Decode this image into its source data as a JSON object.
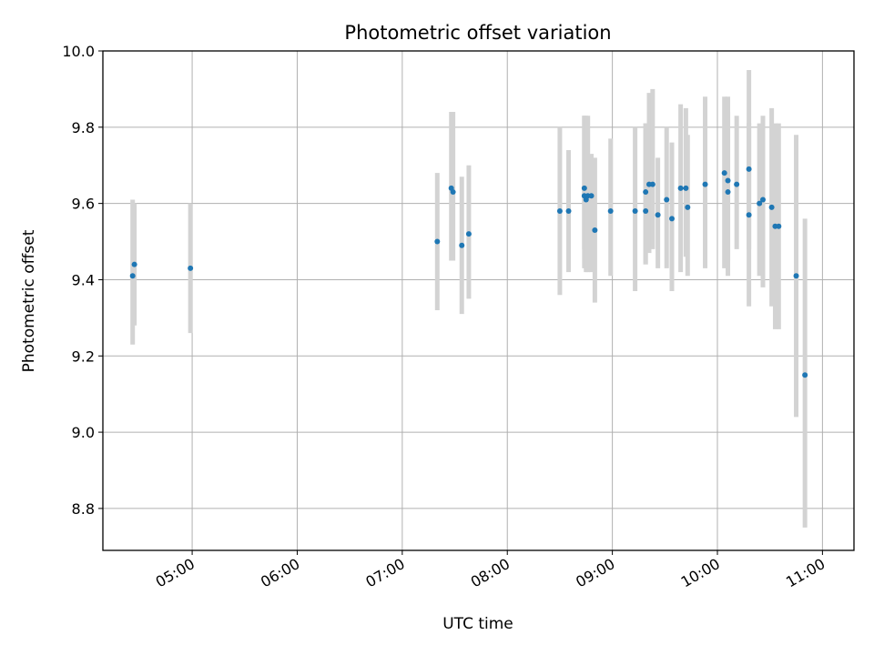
{
  "chart_data": {
    "type": "scatter",
    "title": "Photometric offset variation",
    "xlabel": "UTC time",
    "ylabel": "Photometric offset",
    "x_axis_kind": "time",
    "xlim": [
      "04:09",
      "11:18"
    ],
    "ylim": [
      8.69,
      10.0
    ],
    "xticks": [
      "05:00",
      "06:00",
      "07:00",
      "08:00",
      "09:00",
      "10:00",
      "11:00"
    ],
    "yticks": [
      8.8,
      9.0,
      9.2,
      9.4,
      9.6,
      9.8,
      10.0
    ],
    "ytick_labels": [
      "8.8",
      "9.0",
      "9.2",
      "9.4",
      "9.6",
      "9.8",
      "10.0"
    ],
    "grid": true,
    "colors": {
      "points": "#1f77b4",
      "errorbars": "#d3d3d3",
      "grid": "#b0b0b0"
    },
    "series": [
      {
        "x": [
          "04:26",
          "04:27",
          "04:59",
          "07:20",
          "07:28",
          "07:29",
          "07:34",
          "07:38",
          "08:30",
          "08:35",
          "08:44",
          "08:44",
          "08:45",
          "08:46",
          "08:48",
          "08:50",
          "08:59",
          "09:13",
          "09:19",
          "09:19",
          "09:21",
          "09:23",
          "09:26",
          "09:31",
          "09:34",
          "09:39",
          "09:42",
          "09:43",
          "09:53",
          "10:04",
          "10:06",
          "10:06",
          "10:11",
          "10:18",
          "10:18",
          "10:24",
          "10:26",
          "10:31",
          "10:33",
          "10:35",
          "10:45",
          "10:50"
        ],
        "y": [
          9.41,
          9.44,
          9.43,
          9.5,
          9.64,
          9.63,
          9.49,
          9.52,
          9.58,
          9.58,
          9.64,
          9.62,
          9.61,
          9.62,
          9.62,
          9.53,
          9.58,
          9.58,
          9.58,
          9.63,
          9.65,
          9.65,
          9.57,
          9.61,
          9.56,
          9.64,
          9.64,
          9.59,
          9.65,
          9.68,
          9.66,
          9.63,
          9.65,
          9.69,
          9.57,
          9.6,
          9.61,
          9.59,
          9.54,
          9.54,
          9.41,
          9.15
        ],
        "yerr_low": [
          9.23,
          9.28,
          9.26,
          9.32,
          9.45,
          9.45,
          9.31,
          9.35,
          9.36,
          9.42,
          9.48,
          9.43,
          9.42,
          9.42,
          9.42,
          9.34,
          9.41,
          9.37,
          9.44,
          9.44,
          9.47,
          9.48,
          9.43,
          9.43,
          9.37,
          9.42,
          9.46,
          9.41,
          9.43,
          9.43,
          9.45,
          9.41,
          9.48,
          9.48,
          9.33,
          9.41,
          9.38,
          9.33,
          9.27,
          9.27,
          9.04,
          8.75
        ],
        "yerr_high": [
          9.61,
          9.6,
          9.6,
          9.68,
          9.84,
          9.84,
          9.67,
          9.7,
          9.8,
          9.74,
          9.83,
          9.83,
          9.83,
          9.83,
          9.73,
          9.72,
          9.77,
          9.8,
          9.81,
          9.81,
          9.89,
          9.9,
          9.72,
          9.8,
          9.76,
          9.86,
          9.85,
          9.78,
          9.88,
          9.88,
          9.88,
          9.84,
          9.83,
          9.95,
          9.81,
          9.81,
          9.83,
          9.85,
          9.81,
          9.81,
          9.78,
          9.56
        ]
      }
    ]
  }
}
